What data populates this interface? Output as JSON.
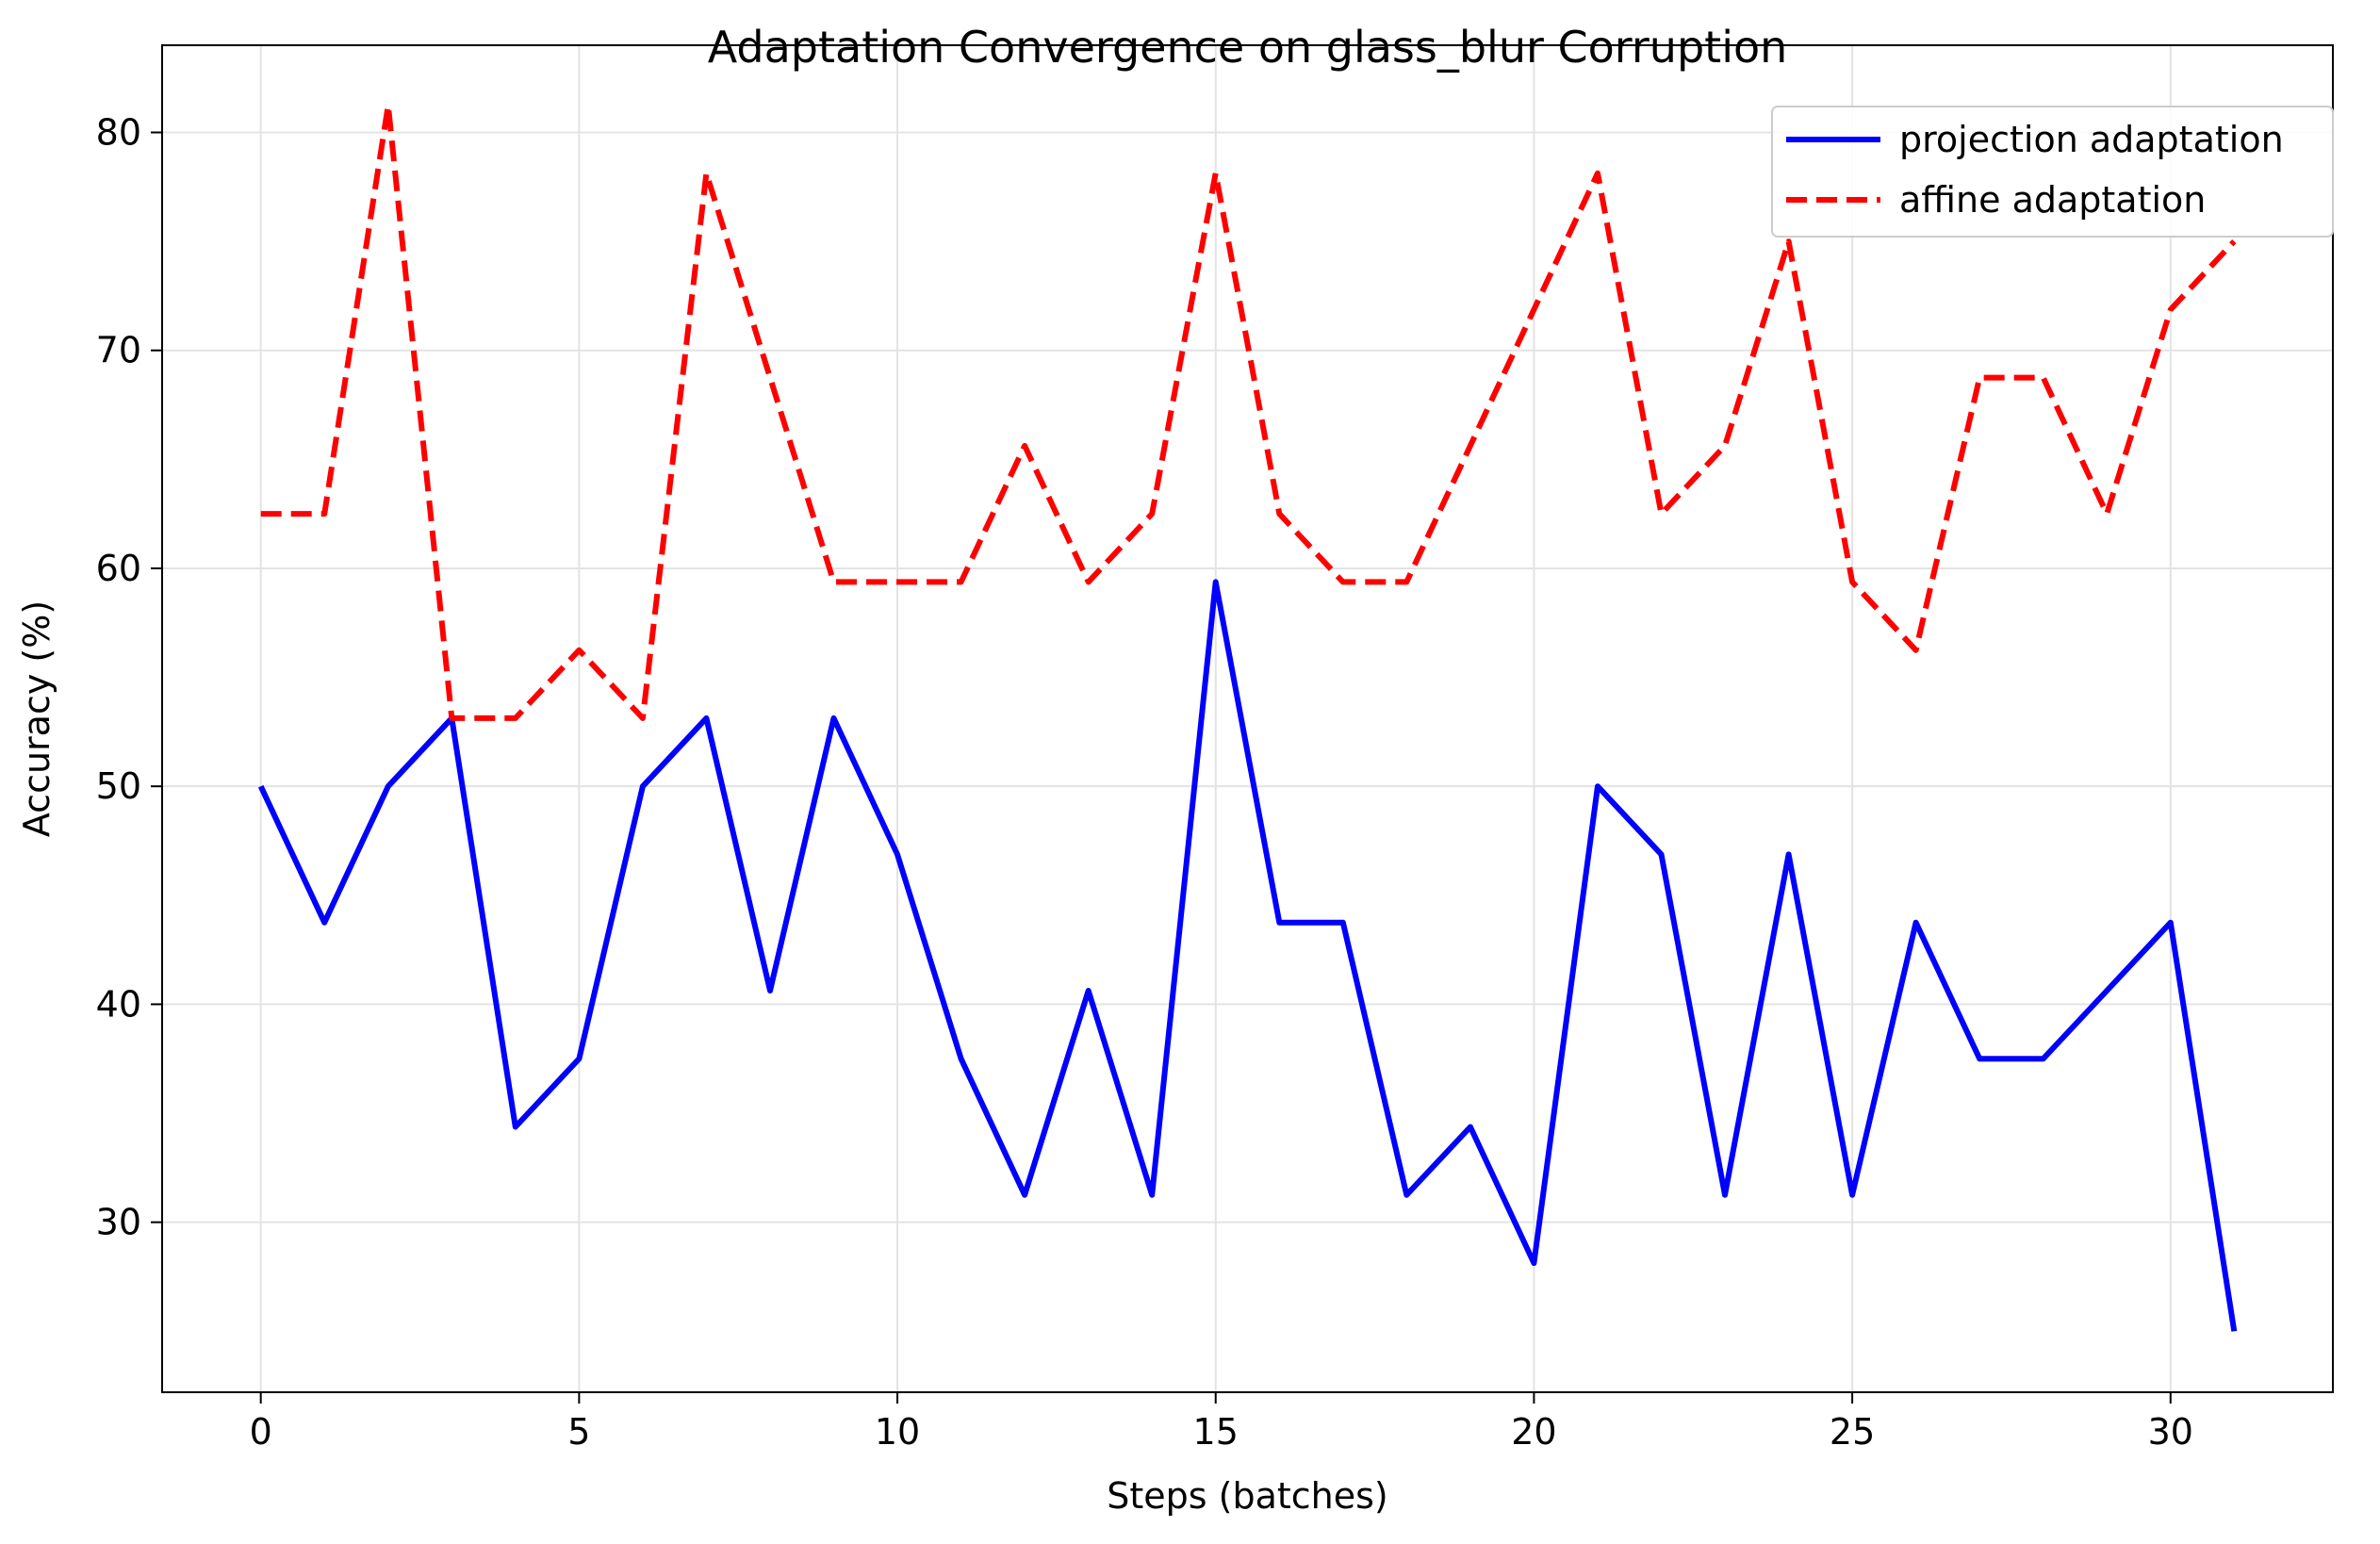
{
  "chart_data": {
    "type": "line",
    "title": "Adaptation Convergence on glass_blur Corruption",
    "xlabel": "Steps (batches)",
    "ylabel": "Accuracy (%)",
    "xlim": [
      -1.55,
      32.55
    ],
    "ylim": [
      22.2,
      84.0
    ],
    "xticks": [
      0,
      5,
      10,
      15,
      20,
      25,
      30
    ],
    "yticks": [
      30,
      40,
      50,
      60,
      70,
      80
    ],
    "grid": true,
    "legend_position": "top-right",
    "x": [
      0,
      1,
      2,
      3,
      4,
      5,
      6,
      7,
      8,
      9,
      10,
      11,
      12,
      13,
      14,
      15,
      16,
      17,
      18,
      19,
      20,
      21,
      22,
      23,
      24,
      25,
      26,
      27,
      28,
      29,
      30,
      31
    ],
    "series": [
      {
        "name": "projection adaptation",
        "color": "#0000ff",
        "style": "solid",
        "values": [
          50.0,
          43.75,
          50.0,
          53.125,
          34.375,
          37.5,
          50.0,
          53.125,
          40.625,
          53.125,
          46.875,
          37.5,
          31.25,
          40.625,
          31.25,
          59.375,
          43.75,
          43.75,
          31.25,
          34.375,
          28.125,
          50.0,
          46.875,
          31.25,
          46.875,
          31.25,
          43.75,
          37.5,
          37.5,
          40.625,
          43.75,
          25.0
        ]
      },
      {
        "name": "affine adaptation",
        "color": "#ff0000",
        "style": "dashed",
        "values": [
          62.5,
          62.5,
          81.25,
          53.125,
          53.125,
          56.25,
          53.125,
          78.125,
          68.75,
          59.375,
          59.375,
          59.375,
          65.625,
          59.375,
          62.5,
          78.125,
          62.5,
          59.375,
          59.375,
          65.625,
          71.875,
          78.125,
          62.5,
          65.625,
          75.0,
          59.375,
          56.25,
          68.75,
          68.75,
          62.5,
          71.875,
          75.0
        ]
      }
    ]
  }
}
